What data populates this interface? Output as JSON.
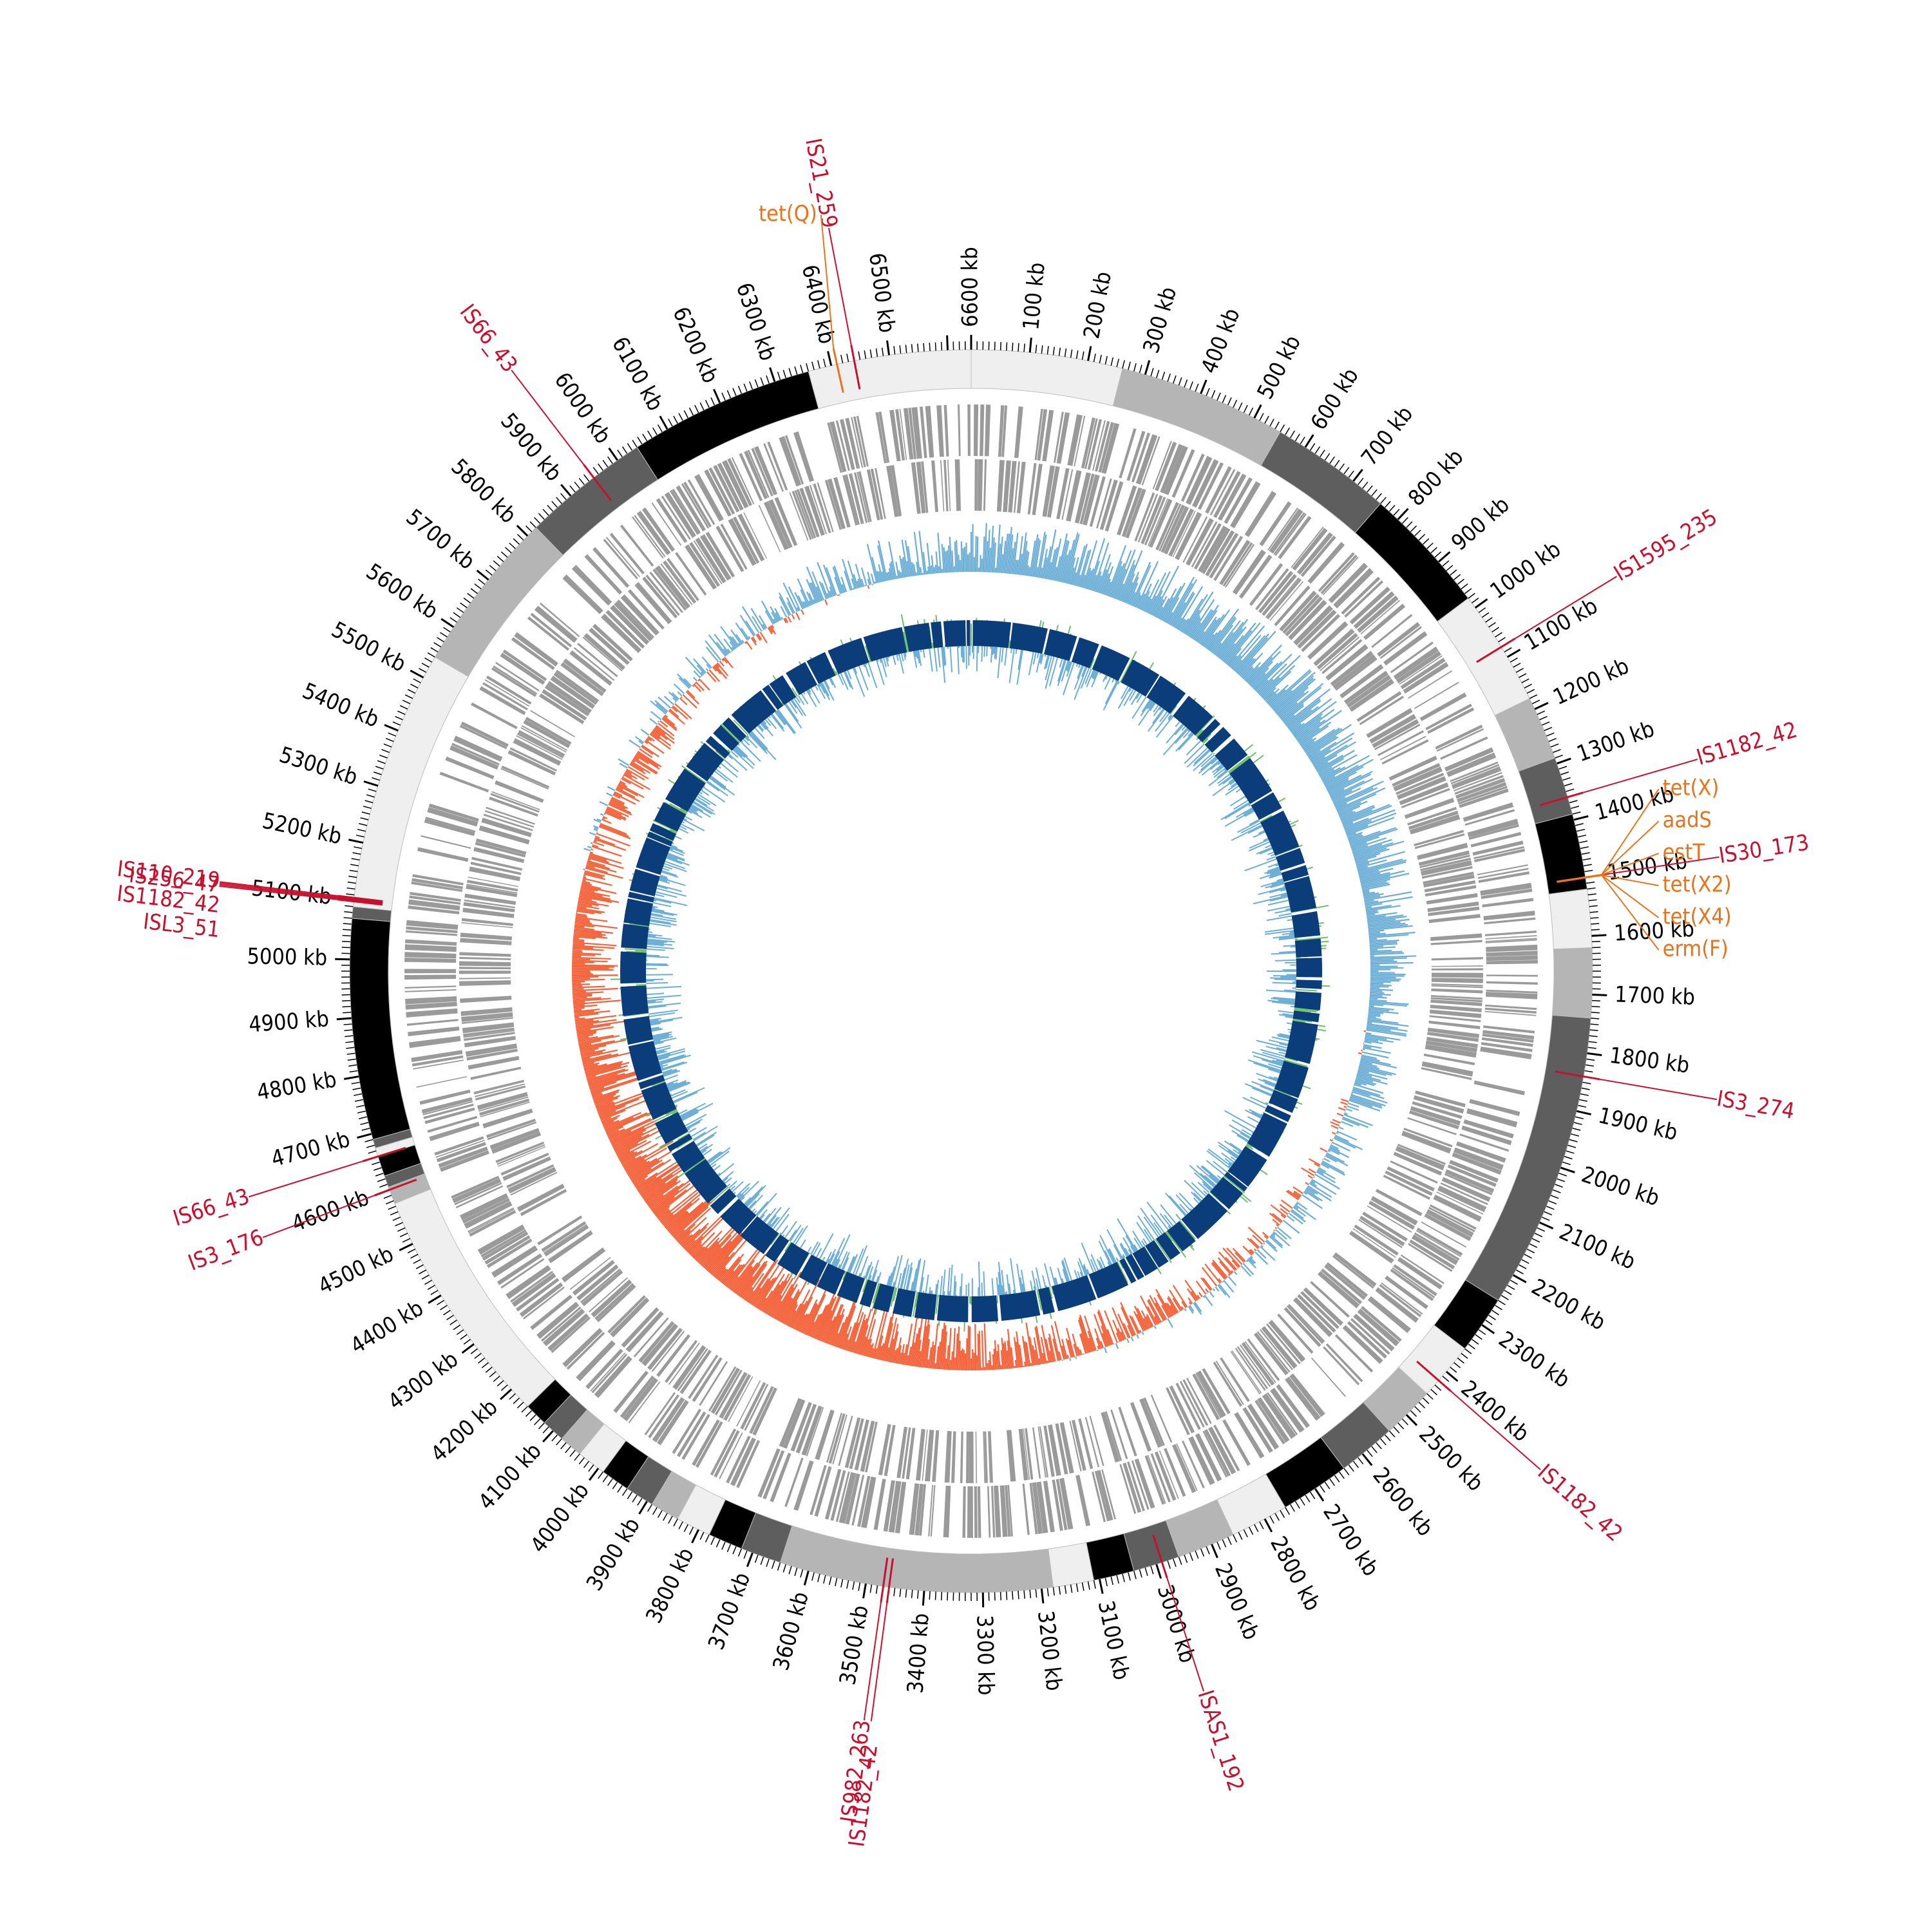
{
  "genome": {
    "length_kb": 6640,
    "tick_unit": "kb"
  },
  "colors": {
    "is_element": "#c8102e",
    "resistance_gene": "#e8731a",
    "cds_track": "#9a9a9a",
    "gc_skew_pos": "#6baed6",
    "gc_skew_neg": "#f4623a",
    "gc_content": "#6cc06a",
    "blast_hits": "#0b3d7a",
    "contig_shades": [
      "#000000",
      "#5e5e5e",
      "#b5b5b5",
      "#efefef"
    ]
  },
  "ticks": [
    {
      "pos": 0,
      "label": "6600 kb"
    },
    {
      "pos": 100,
      "label": "100 kb"
    },
    {
      "pos": 200,
      "label": "200 kb"
    },
    {
      "pos": 300,
      "label": "300 kb"
    },
    {
      "pos": 400,
      "label": "400 kb"
    },
    {
      "pos": 500,
      "label": "500 kb"
    },
    {
      "pos": 600,
      "label": "600 kb"
    },
    {
      "pos": 700,
      "label": "700 kb"
    },
    {
      "pos": 800,
      "label": "800 kb"
    },
    {
      "pos": 900,
      "label": "900 kb"
    },
    {
      "pos": 1000,
      "label": "1000 kb"
    },
    {
      "pos": 1100,
      "label": "1100 kb"
    },
    {
      "pos": 1200,
      "label": "1200 kb"
    },
    {
      "pos": 1300,
      "label": "1300 kb"
    },
    {
      "pos": 1400,
      "label": "1400 kb"
    },
    {
      "pos": 1500,
      "label": "1500 kb"
    },
    {
      "pos": 1600,
      "label": "1600 kb"
    },
    {
      "pos": 1700,
      "label": "1700 kb"
    },
    {
      "pos": 1800,
      "label": "1800 kb"
    },
    {
      "pos": 1900,
      "label": "1900 kb"
    },
    {
      "pos": 2000,
      "label": "2000 kb"
    },
    {
      "pos": 2100,
      "label": "2100 kb"
    },
    {
      "pos": 2200,
      "label": "2200 kb"
    },
    {
      "pos": 2300,
      "label": "2300 kb"
    },
    {
      "pos": 2400,
      "label": "2400 kb"
    },
    {
      "pos": 2500,
      "label": "2500 kb"
    },
    {
      "pos": 2600,
      "label": "2600 kb"
    },
    {
      "pos": 2700,
      "label": "2700 kb"
    },
    {
      "pos": 2800,
      "label": "2800 kb"
    },
    {
      "pos": 2900,
      "label": "2900 kb"
    },
    {
      "pos": 3000,
      "label": "3000 kb"
    },
    {
      "pos": 3100,
      "label": "3100 kb"
    },
    {
      "pos": 3200,
      "label": "3200 kb"
    },
    {
      "pos": 3300,
      "label": "3300 kb"
    },
    {
      "pos": 3400,
      "label": "3400 kb"
    },
    {
      "pos": 3500,
      "label": "3500 kb"
    },
    {
      "pos": 3600,
      "label": "3600 kb"
    },
    {
      "pos": 3700,
      "label": "3700 kb"
    },
    {
      "pos": 3800,
      "label": "3800 kb"
    },
    {
      "pos": 3900,
      "label": "3900 kb"
    },
    {
      "pos": 4000,
      "label": "4000 kb"
    },
    {
      "pos": 4100,
      "label": "4100 kb"
    },
    {
      "pos": 4200,
      "label": "4200 kb"
    },
    {
      "pos": 4300,
      "label": "4300 kb"
    },
    {
      "pos": 4400,
      "label": "4400 kb"
    },
    {
      "pos": 4500,
      "label": "4500 kb"
    },
    {
      "pos": 4600,
      "label": "4600 kb"
    },
    {
      "pos": 4700,
      "label": "4700 kb"
    },
    {
      "pos": 4800,
      "label": "4800 kb"
    },
    {
      "pos": 4900,
      "label": "4900 kb"
    },
    {
      "pos": 5000,
      "label": "5000 kb"
    },
    {
      "pos": 5100,
      "label": "5100 kb"
    },
    {
      "pos": 5200,
      "label": "5200 kb"
    },
    {
      "pos": 5300,
      "label": "5300 kb"
    },
    {
      "pos": 5400,
      "label": "5400 kb"
    },
    {
      "pos": 5500,
      "label": "5500 kb"
    },
    {
      "pos": 5600,
      "label": "5600 kb"
    },
    {
      "pos": 5700,
      "label": "5700 kb"
    },
    {
      "pos": 5800,
      "label": "5800 kb"
    },
    {
      "pos": 5900,
      "label": "5900 kb"
    },
    {
      "pos": 6000,
      "label": "6000 kb"
    },
    {
      "pos": 6100,
      "label": "6100 kb"
    },
    {
      "pos": 6200,
      "label": "6200 kb"
    },
    {
      "pos": 6300,
      "label": "6300 kb"
    },
    {
      "pos": 6400,
      "label": "6400 kb"
    },
    {
      "pos": 6500,
      "label": "6500 kb"
    }
  ],
  "contigs": [
    {
      "start": 0,
      "end": 260,
      "shade": 3
    },
    {
      "start": 260,
      "end": 550,
      "shade": 2
    },
    {
      "start": 550,
      "end": 760,
      "shade": 1
    },
    {
      "start": 760,
      "end": 980,
      "shade": 0
    },
    {
      "start": 980,
      "end": 1180,
      "shade": 3
    },
    {
      "start": 1180,
      "end": 1290,
      "shade": 2
    },
    {
      "start": 1290,
      "end": 1390,
      "shade": 1
    },
    {
      "start": 1390,
      "end": 1520,
      "shade": 0
    },
    {
      "start": 1520,
      "end": 1620,
      "shade": 3
    },
    {
      "start": 1620,
      "end": 1740,
      "shade": 2
    },
    {
      "start": 1740,
      "end": 2250,
      "shade": 1
    },
    {
      "start": 2250,
      "end": 2350,
      "shade": 0
    },
    {
      "start": 2350,
      "end": 2450,
      "shade": 3
    },
    {
      "start": 2450,
      "end": 2540,
      "shade": 2
    },
    {
      "start": 2540,
      "end": 2640,
      "shade": 1
    },
    {
      "start": 2640,
      "end": 2760,
      "shade": 0
    },
    {
      "start": 2760,
      "end": 2860,
      "shade": 3
    },
    {
      "start": 2860,
      "end": 2960,
      "shade": 2
    },
    {
      "start": 2960,
      "end": 3040,
      "shade": 1
    },
    {
      "start": 3040,
      "end": 3110,
      "shade": 0
    },
    {
      "start": 3110,
      "end": 3180,
      "shade": 3
    },
    {
      "start": 3180,
      "end": 3650,
      "shade": 2
    },
    {
      "start": 3650,
      "end": 3720,
      "shade": 1
    },
    {
      "start": 3720,
      "end": 3780,
      "shade": 0
    },
    {
      "start": 3780,
      "end": 3840,
      "shade": 3
    },
    {
      "start": 3840,
      "end": 3890,
      "shade": 2
    },
    {
      "start": 3890,
      "end": 3940,
      "shade": 1
    },
    {
      "start": 3940,
      "end": 3990,
      "shade": 0
    },
    {
      "start": 3990,
      "end": 4040,
      "shade": 3
    },
    {
      "start": 4040,
      "end": 4080,
      "shade": 2
    },
    {
      "start": 4080,
      "end": 4120,
      "shade": 1
    },
    {
      "start": 4120,
      "end": 4160,
      "shade": 0
    },
    {
      "start": 4160,
      "end": 4575,
      "shade": 3
    },
    {
      "start": 4575,
      "end": 4605,
      "shade": 2
    },
    {
      "start": 4605,
      "end": 4625,
      "shade": 1
    },
    {
      "start": 4625,
      "end": 4660,
      "shade": 0
    },
    {
      "start": 4660,
      "end": 4675,
      "shade": 3
    },
    {
      "start": 4675,
      "end": 4690,
      "shade": 1
    },
    {
      "start": 4690,
      "end": 5070,
      "shade": 0
    },
    {
      "start": 5070,
      "end": 5090,
      "shade": 1
    },
    {
      "start": 5090,
      "end": 5540,
      "shade": 3
    },
    {
      "start": 5540,
      "end": 5820,
      "shade": 2
    },
    {
      "start": 5820,
      "end": 6040,
      "shade": 1
    },
    {
      "start": 6040,
      "end": 6360,
      "shade": 0
    },
    {
      "start": 6360,
      "end": 6640,
      "shade": 3
    }
  ],
  "is_elements": [
    {
      "pos": 6440,
      "label": "IS21_259",
      "side": "top"
    },
    {
      "pos": 5950,
      "label": "IS66_43",
      "side": "left"
    },
    {
      "pos": 1080,
      "label": "IS1595_235",
      "side": "right"
    },
    {
      "pos": 1360,
      "label": "IS1182_42",
      "side": "right"
    },
    {
      "pos": 1500,
      "label": "IS30_173",
      "side": "right"
    },
    {
      "pos": 1840,
      "label": "IS3_274",
      "side": "right"
    },
    {
      "pos": 2420,
      "label": "IS1182_42",
      "side": "right"
    },
    {
      "pos": 2990,
      "label": "ISAS1_192",
      "side": "bottom"
    },
    {
      "pos": 3470,
      "label": "IS982_263",
      "side": "bottom"
    },
    {
      "pos": 3460,
      "label": "IS1182_42",
      "side": "bottom"
    },
    {
      "pos": 4660,
      "label": "IS66_43",
      "side": "left"
    },
    {
      "pos": 4600,
      "label": "IS3_176",
      "side": "left"
    },
    {
      "pos": 5105,
      "label": "IS110_219",
      "side": "left"
    },
    {
      "pos": 5103,
      "label": "IS1182_42",
      "side": "left"
    },
    {
      "pos": 5101,
      "label": "ISL3_51",
      "side": "left"
    },
    {
      "pos": 5099,
      "label": "IS256_47",
      "side": "left"
    }
  ],
  "resistance_genes": [
    {
      "pos": 6410,
      "label": "tet(Q)"
    },
    {
      "pos": 1500,
      "label": "tet(X)"
    },
    {
      "pos": 1500,
      "label": "aadS"
    },
    {
      "pos": 1500,
      "label": "estT"
    },
    {
      "pos": 1500,
      "label": "tet(X2)"
    },
    {
      "pos": 1500,
      "label": "tet(X4)"
    },
    {
      "pos": 1500,
      "label": "erm(F)"
    }
  ]
}
